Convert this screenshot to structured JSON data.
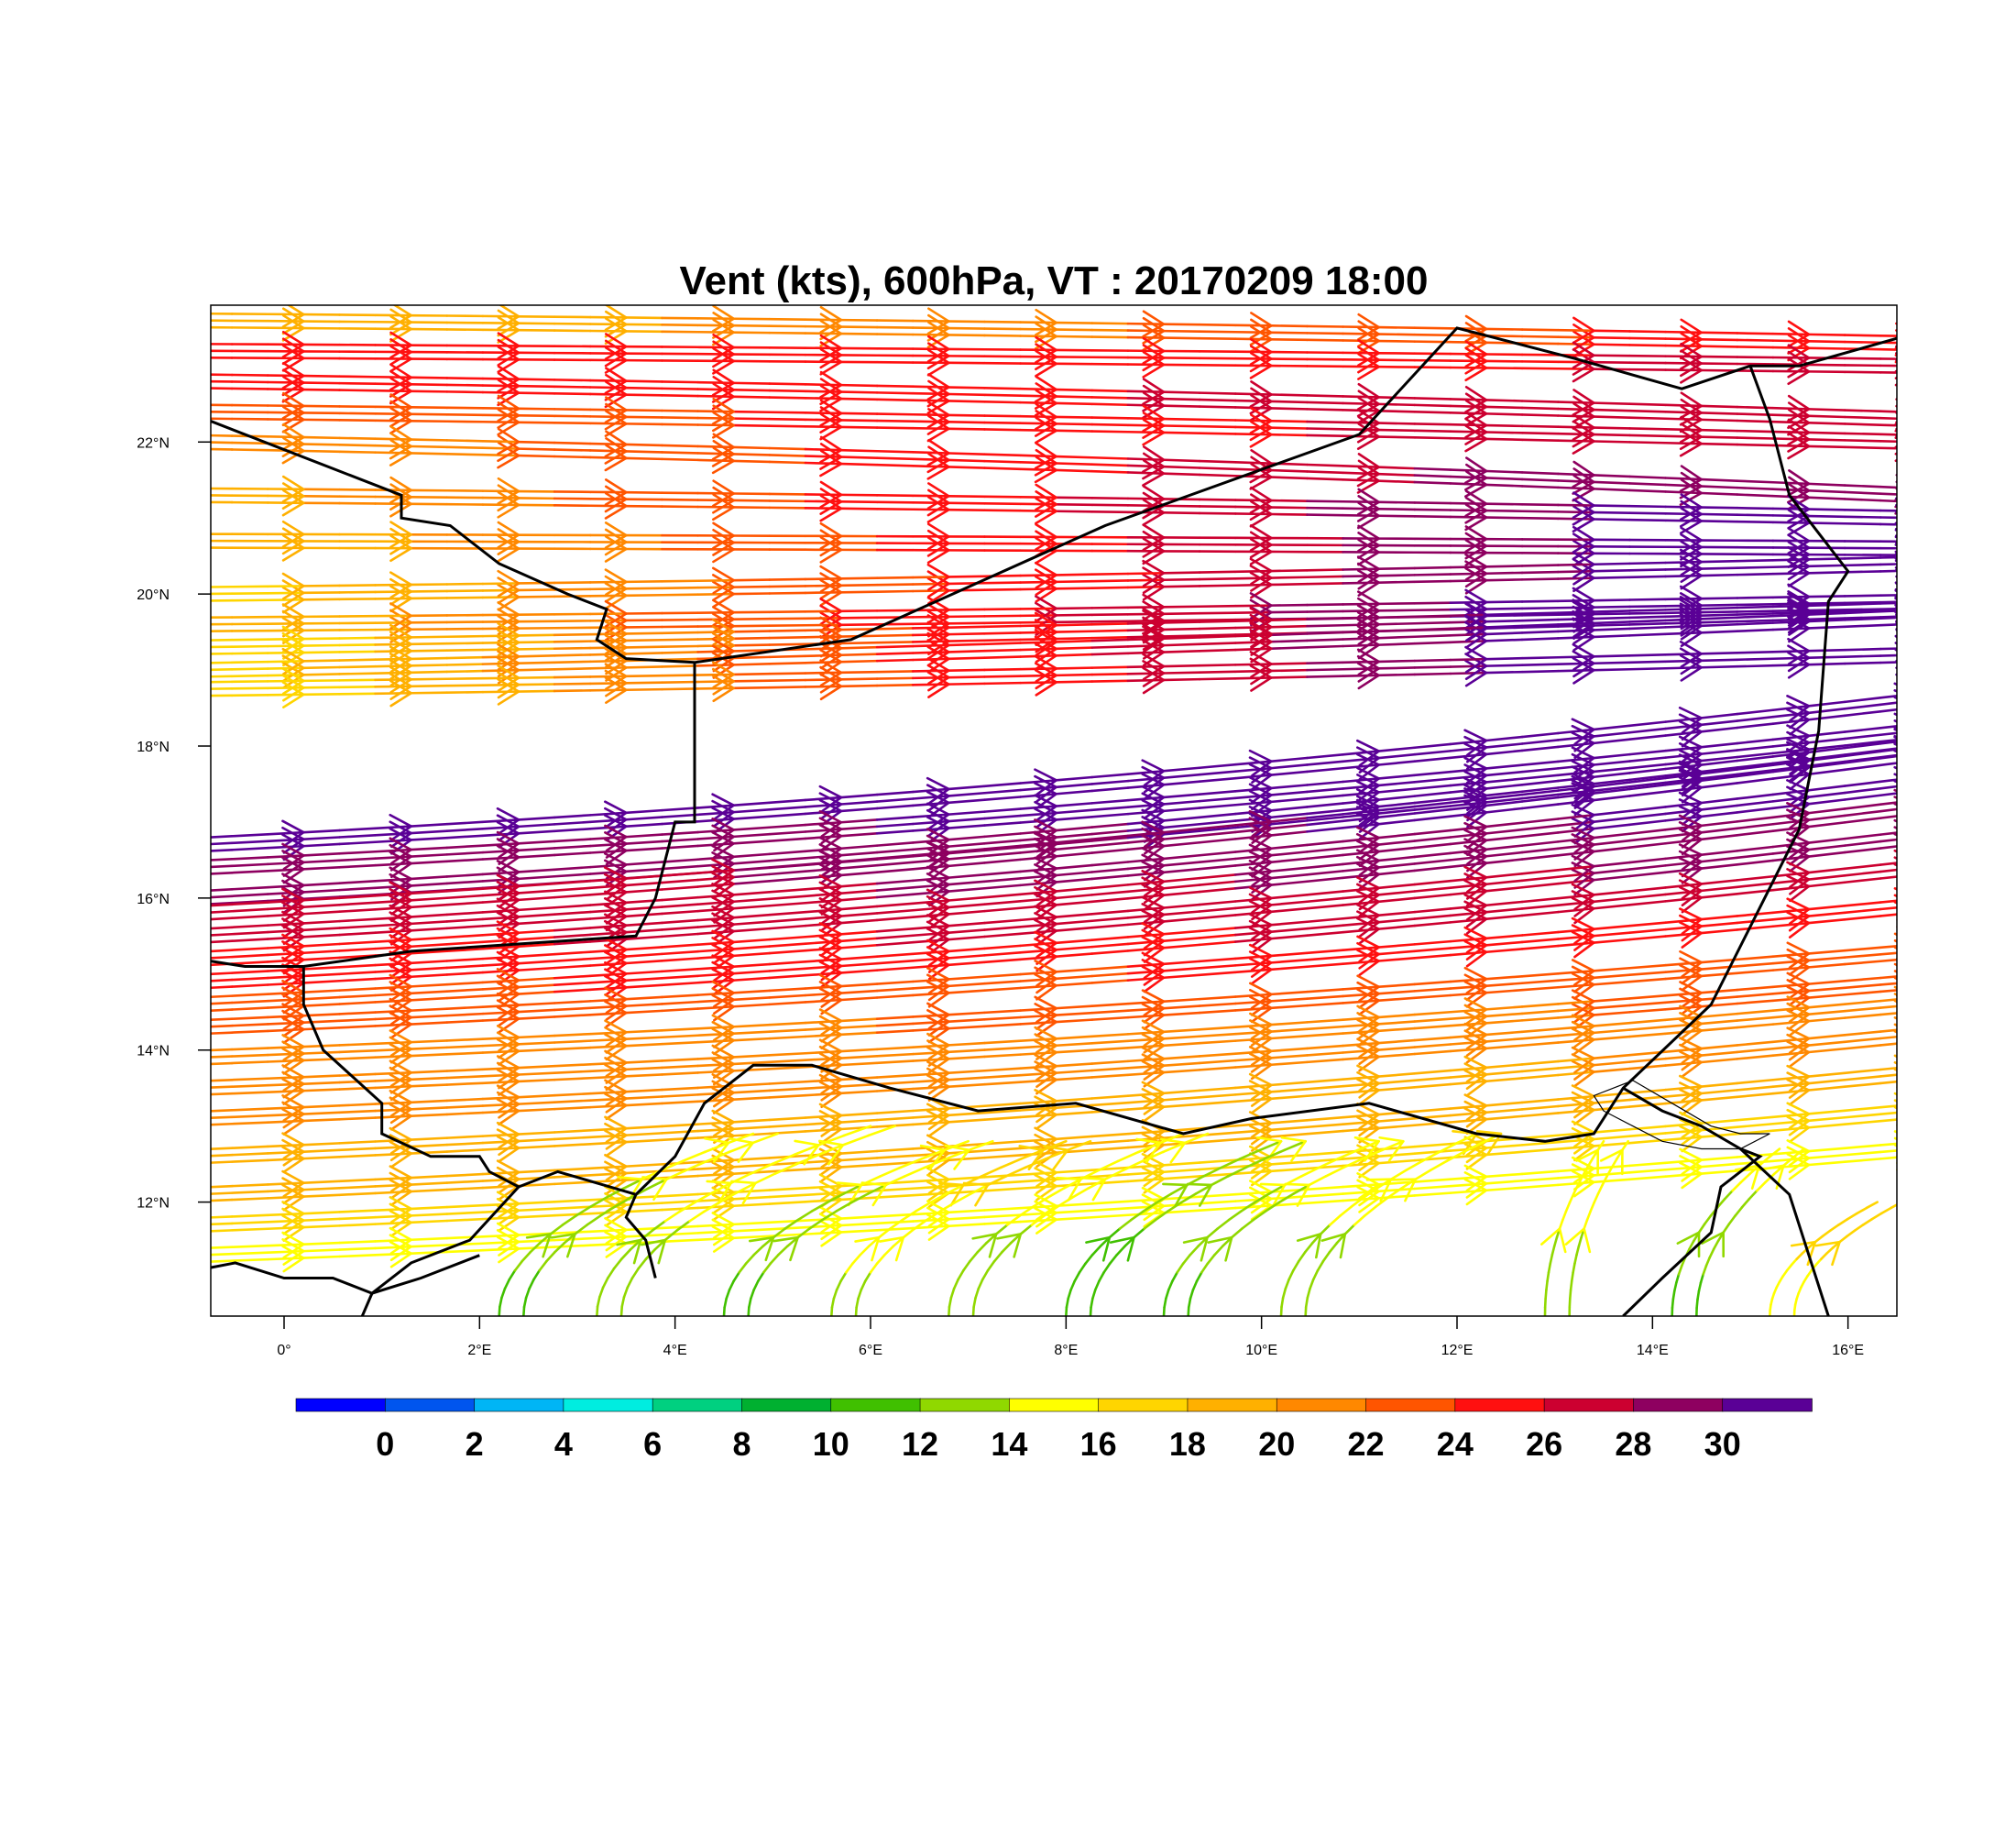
{
  "title": "Vent (kts), 600hPa, VT : 20170209  18:00",
  "map": {
    "lon_range": [
      -0.75,
      16.5
    ],
    "lat_range": [
      10.5,
      23.8
    ],
    "lon_ticks": [
      {
        "value": 0,
        "label": "0°"
      },
      {
        "value": 2,
        "label": "2°E"
      },
      {
        "value": 4,
        "label": "4°E"
      },
      {
        "value": 6,
        "label": "6°E"
      },
      {
        "value": 8,
        "label": "8°E"
      },
      {
        "value": 10,
        "label": "10°E"
      },
      {
        "value": 12,
        "label": "12°E"
      },
      {
        "value": 14,
        "label": "14°E"
      },
      {
        "value": 16,
        "label": "16°E"
      }
    ],
    "lat_ticks": [
      {
        "value": 12,
        "label": "12°N"
      },
      {
        "value": 14,
        "label": "14°N"
      },
      {
        "value": 16,
        "label": "16°N"
      },
      {
        "value": 18,
        "label": "18°N"
      },
      {
        "value": 20,
        "label": "20°N"
      },
      {
        "value": 22,
        "label": "22°N"
      }
    ]
  },
  "colorbar": {
    "colors": [
      "#0000ff",
      "#0055ee",
      "#00b5f5",
      "#00ede0",
      "#00d080",
      "#00b030",
      "#40c000",
      "#90d800",
      "#ffff00",
      "#ffd500",
      "#ffb000",
      "#ff8800",
      "#ff5500",
      "#ff1010",
      "#cc0030",
      "#8e0060",
      "#5a0096"
    ],
    "labels": [
      "0",
      "2",
      "4",
      "6",
      "8",
      "10",
      "12",
      "14",
      "16",
      "18",
      "20",
      "22",
      "24",
      "26",
      "28",
      "30"
    ]
  },
  "chart_data": {
    "type": "wind-vector-map",
    "title": "Vent (kts), 600hPa, VT : 20170209  18:00",
    "variable": "wind speed (kts) at 600hPa",
    "valid_time": "20170209 18:00",
    "colorbar_levels": [
      0,
      2,
      4,
      6,
      8,
      10,
      12,
      14,
      16,
      18,
      20,
      22,
      24,
      26,
      28,
      30
    ],
    "bands": [
      {
        "lat_start": 23.6,
        "lat_end": 23.3,
        "speed_west": 18,
        "speed_east": 24
      },
      {
        "lat_start": 23.2,
        "lat_end": 23.0,
        "speed_west": 24,
        "speed_east": 26
      },
      {
        "lat_start": 22.8,
        "lat_end": 22.3,
        "speed_west": 24,
        "speed_east": 27
      },
      {
        "lat_start": 22.4,
        "lat_end": 22.0,
        "speed_west": 22,
        "speed_east": 27
      },
      {
        "lat_start": 22.0,
        "lat_end": 21.3,
        "speed_west": 20,
        "speed_east": 29
      },
      {
        "lat_start": 21.3,
        "lat_end": 21.0,
        "speed_west": 19,
        "speed_east": 30
      },
      {
        "lat_start": 20.7,
        "lat_end": 20.6,
        "speed_west": 18,
        "speed_east": 30
      },
      {
        "lat_start": 20.0,
        "lat_end": 20.4,
        "speed_west": 17,
        "speed_east": 30
      },
      {
        "lat_start": 19.6,
        "lat_end": 19.9,
        "speed_west": 18,
        "speed_east": 31
      },
      {
        "lat_start": 19.3,
        "lat_end": 19.8,
        "speed_west": 16,
        "speed_east": 31
      },
      {
        "lat_start": 19.0,
        "lat_end": 19.7,
        "speed_west": 17,
        "speed_east": 31
      },
      {
        "lat_start": 18.75,
        "lat_end": 19.2,
        "speed_west": 16,
        "speed_east": 31
      },
      {
        "lat_start": 16.7,
        "lat_end": 18.6,
        "speed_west": 30,
        "speed_east": 31
      },
      {
        "lat_start": 16.4,
        "lat_end": 18.2,
        "speed_west": 29,
        "speed_east": 31
      },
      {
        "lat_start": 16.0,
        "lat_end": 18.0,
        "speed_west": 28,
        "speed_east": 31
      },
      {
        "lat_start": 15.8,
        "lat_end": 17.9,
        "speed_west": 26,
        "speed_east": 31
      },
      {
        "lat_start": 15.5,
        "lat_end": 17.5,
        "speed_west": 26,
        "speed_east": 30
      },
      {
        "lat_start": 15.2,
        "lat_end": 17.2,
        "speed_west": 25,
        "speed_east": 29
      },
      {
        "lat_start": 14.9,
        "lat_end": 16.8,
        "speed_west": 24,
        "speed_east": 28
      },
      {
        "lat_start": 14.6,
        "lat_end": 16.4,
        "speed_west": 23,
        "speed_east": 27
      },
      {
        "lat_start": 14.3,
        "lat_end": 15.9,
        "speed_west": 22,
        "speed_east": 25
      },
      {
        "lat_start": 13.9,
        "lat_end": 15.3,
        "speed_west": 21,
        "speed_east": 23
      },
      {
        "lat_start": 13.5,
        "lat_end": 14.9,
        "speed_west": 21,
        "speed_east": 22
      },
      {
        "lat_start": 13.1,
        "lat_end": 14.6,
        "speed_west": 20,
        "speed_east": 21
      },
      {
        "lat_start": 12.6,
        "lat_end": 14.2,
        "speed_west": 19,
        "speed_east": 20
      },
      {
        "lat_start": 12.1,
        "lat_end": 13.7,
        "speed_west": 18,
        "speed_east": 19
      },
      {
        "lat_start": 11.7,
        "lat_end": 13.2,
        "speed_west": 17,
        "speed_east": 17
      },
      {
        "lat_start": 11.3,
        "lat_end": 12.7,
        "speed_west": 14,
        "speed_east": 15
      }
    ],
    "southern_curves": [
      {
        "start": [
          2.2,
          10.5
        ],
        "end": [
          4.8,
          12.9
        ],
        "speed": 11
      },
      {
        "start": [
          3.2,
          10.5
        ],
        "end": [
          6.0,
          13.0
        ],
        "speed": 12
      },
      {
        "start": [
          4.5,
          10.5
        ],
        "end": [
          7.0,
          12.8
        ],
        "speed": 11
      },
      {
        "start": [
          5.6,
          10.5
        ],
        "end": [
          8.0,
          12.8
        ],
        "speed": 13
      },
      {
        "start": [
          6.8,
          10.5
        ],
        "end": [
          9.2,
          12.9
        ],
        "speed": 12
      },
      {
        "start": [
          8.0,
          10.5
        ],
        "end": [
          10.2,
          12.8
        ],
        "speed": 10
      },
      {
        "start": [
          9.0,
          10.5
        ],
        "end": [
          11.2,
          12.8
        ],
        "speed": 11
      },
      {
        "start": [
          10.2,
          10.5
        ],
        "end": [
          12.2,
          12.9
        ],
        "speed": 12
      },
      {
        "start": [
          12.9,
          10.5
        ],
        "end": [
          13.5,
          12.8
        ],
        "speed": 12
      },
      {
        "start": [
          14.2,
          10.5
        ],
        "end": [
          15.3,
          12.7
        ],
        "speed": 11
      },
      {
        "start": [
          15.2,
          10.5
        ],
        "end": [
          16.3,
          12.0
        ],
        "speed": 14
      }
    ]
  }
}
